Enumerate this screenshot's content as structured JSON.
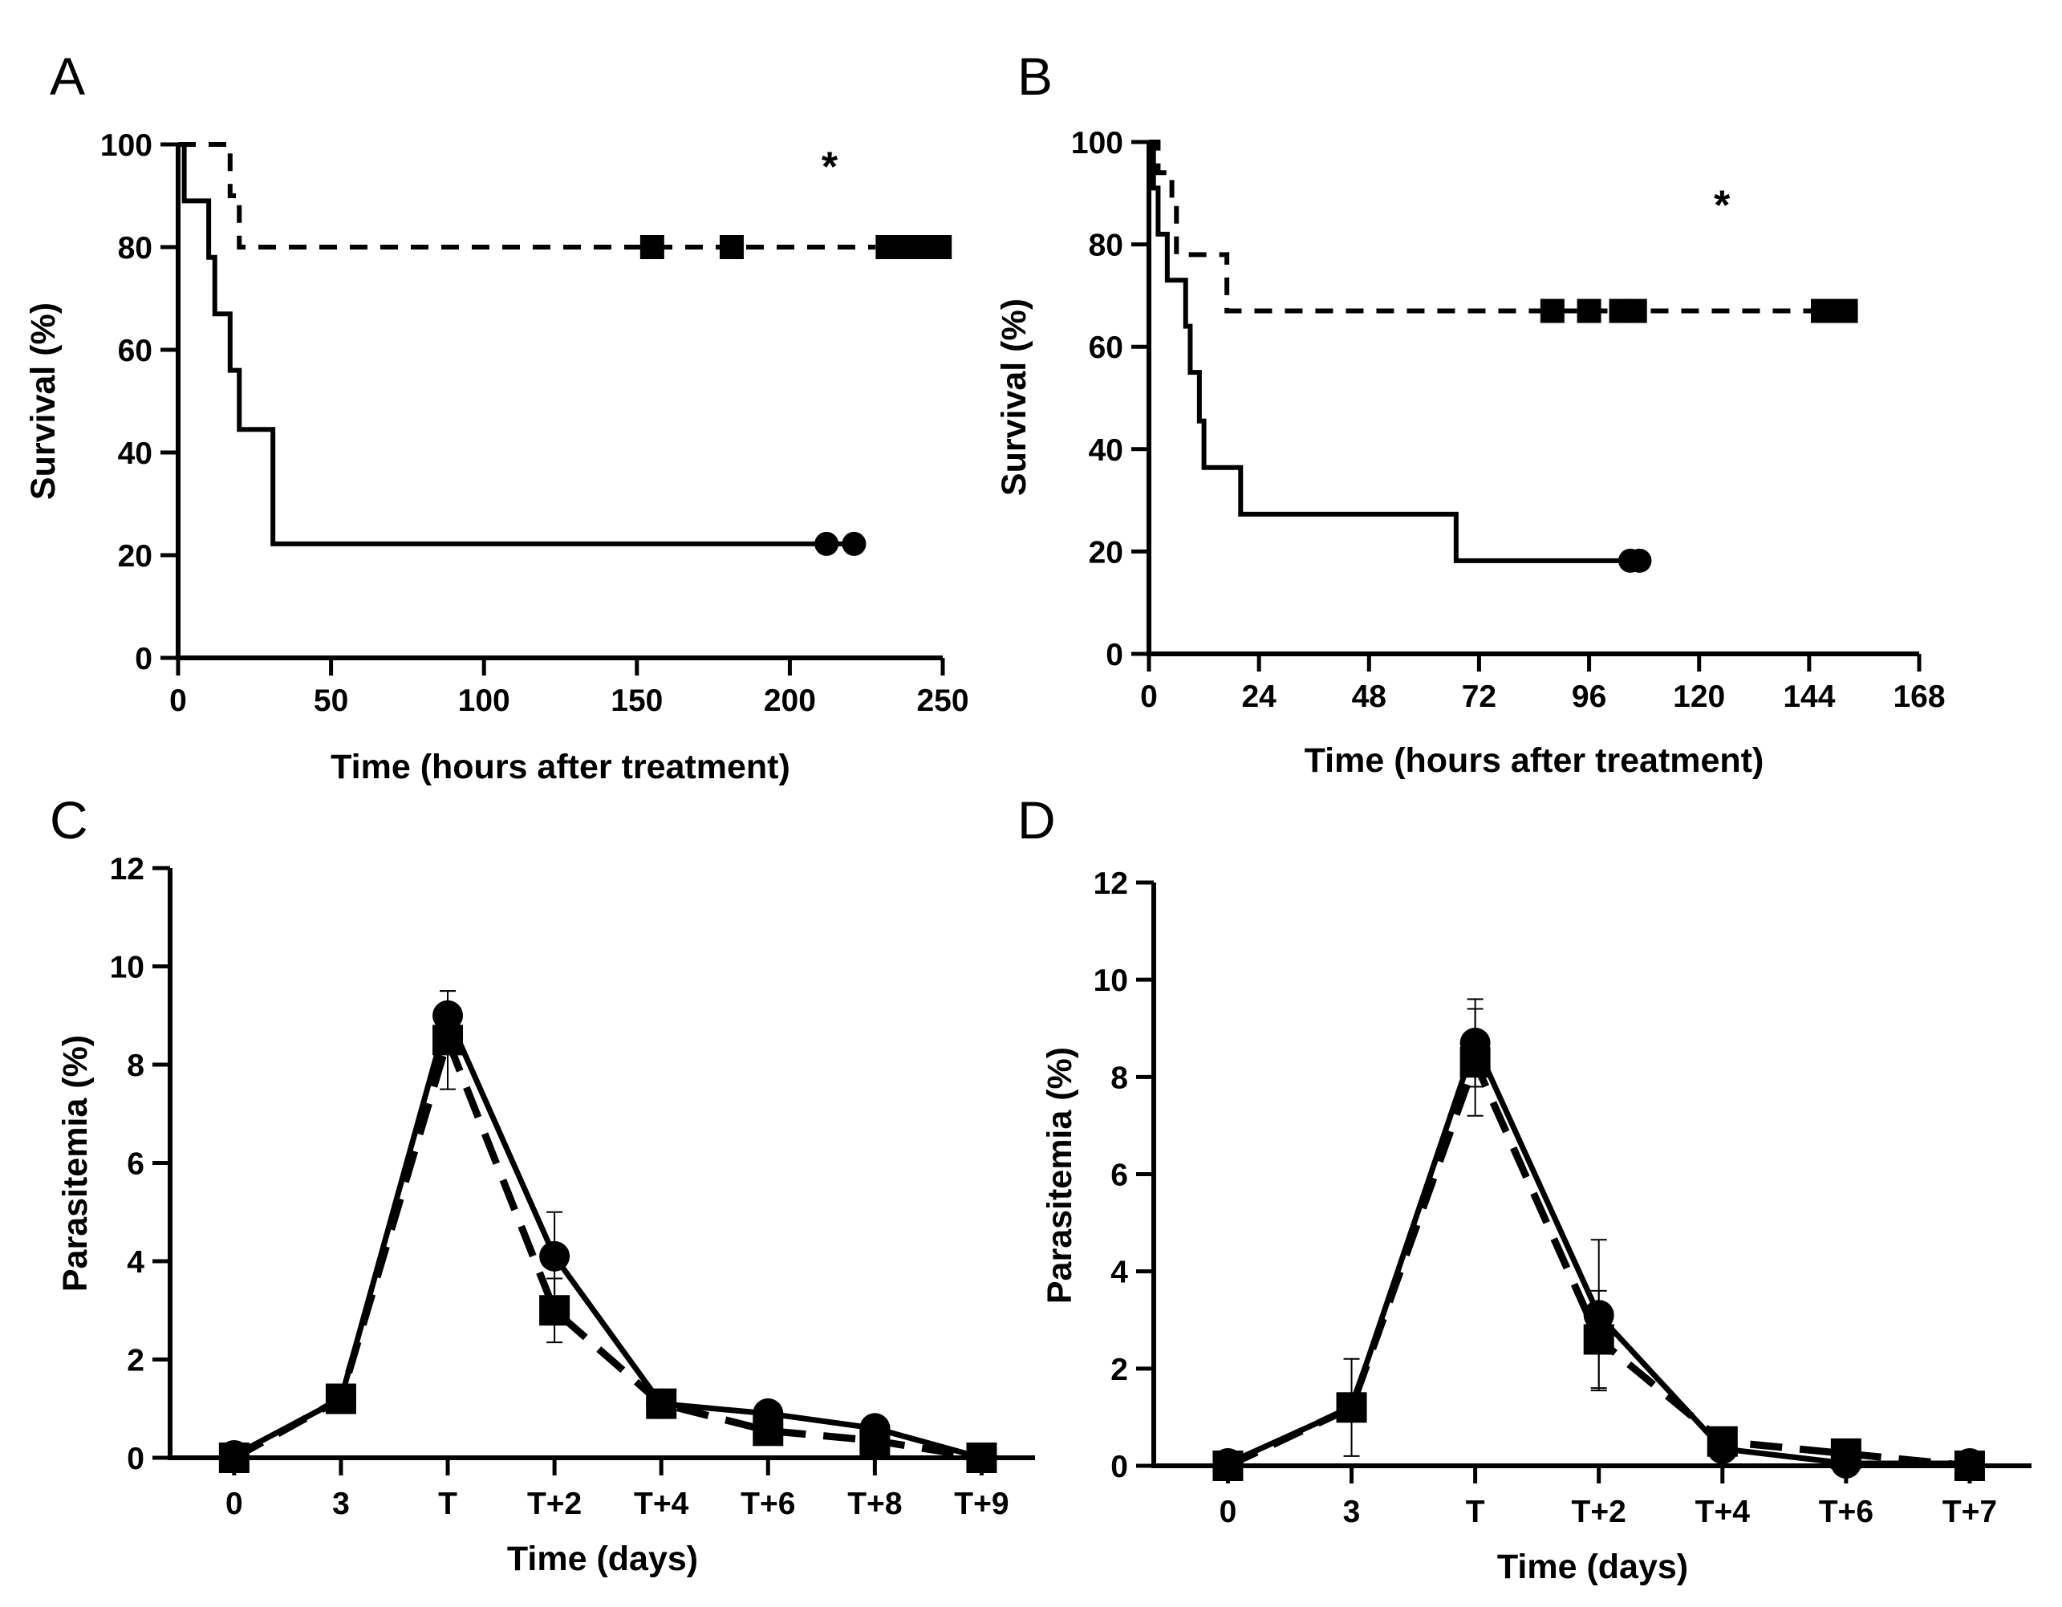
{
  "chart_data": [
    {
      "panel": "A",
      "type": "survival",
      "xlabel": "Time (hours after treatment)",
      "ylabel": "Survival (%)",
      "xlim": [
        0,
        250
      ],
      "ylim": [
        0,
        100
      ],
      "xticks": [
        0,
        50,
        100,
        150,
        200,
        250
      ],
      "yticks": [
        0,
        20,
        40,
        60,
        80,
        100
      ],
      "annotation": "*",
      "annotation_pos": [
        213,
        96
      ],
      "series": [
        {
          "name": "dashed",
          "style": "dashed",
          "marker": "square",
          "steps": [
            [
              0,
              100
            ],
            [
              17,
              100
            ],
            [
              17,
              90
            ],
            [
              20,
              90
            ],
            [
              20,
              80
            ],
            [
              228,
              80
            ]
          ],
          "censored": [
            [
              155,
              80
            ],
            [
              181,
              80
            ],
            [
              232,
              80
            ],
            [
              236,
              80
            ],
            [
              241,
              80
            ],
            [
              245,
              80
            ],
            [
              249,
              80
            ]
          ]
        },
        {
          "name": "solid",
          "style": "solid",
          "marker": "circle",
          "steps": [
            [
              0,
              100
            ],
            [
              2,
              100
            ],
            [
              2,
              89
            ],
            [
              10,
              89
            ],
            [
              10,
              78
            ],
            [
              12,
              78
            ],
            [
              12,
              67
            ],
            [
              17,
              67
            ],
            [
              17,
              56
            ],
            [
              20,
              56
            ],
            [
              20,
              44.5
            ],
            [
              31,
              44.5
            ],
            [
              31,
              22.2
            ],
            [
              220,
              22.2
            ]
          ],
          "censored": [
            [
              212,
              22.2
            ],
            [
              221,
              22.2
            ]
          ]
        }
      ]
    },
    {
      "panel": "B",
      "type": "survival",
      "xlabel": "Time (hours after treatment)",
      "ylabel": "Survival (%)",
      "xlim": [
        0,
        168
      ],
      "ylim": [
        0,
        100
      ],
      "xticks": [
        0,
        24,
        48,
        72,
        96,
        120,
        144,
        168
      ],
      "yticks": [
        0,
        20,
        40,
        60,
        80,
        100
      ],
      "annotation": "*",
      "annotation_pos": [
        125,
        88
      ],
      "series": [
        {
          "name": "dashed",
          "style": "dashed",
          "marker": "square",
          "steps": [
            [
              0,
              100
            ],
            [
              2,
              100
            ],
            [
              2,
              94
            ],
            [
              5,
              94
            ],
            [
              5,
              89
            ],
            [
              6,
              89
            ],
            [
              6,
              78
            ],
            [
              17,
              78
            ],
            [
              17,
              67
            ],
            [
              153,
              67
            ]
          ],
          "censored": [
            [
              88,
              67
            ],
            [
              96,
              67
            ],
            [
              103,
              67
            ],
            [
              106,
              67
            ],
            [
              147,
              67
            ],
            [
              152,
              67
            ]
          ]
        },
        {
          "name": "solid",
          "style": "solid",
          "marker": "circle",
          "steps": [
            [
              0,
              100
            ],
            [
              1,
              100
            ],
            [
              1,
              91
            ],
            [
              2,
              91
            ],
            [
              2,
              82
            ],
            [
              4,
              82
            ],
            [
              4,
              73
            ],
            [
              8,
              73
            ],
            [
              8,
              64
            ],
            [
              9,
              64
            ],
            [
              9,
              55
            ],
            [
              11,
              55
            ],
            [
              11,
              45.5
            ],
            [
              12,
              45.5
            ],
            [
              12,
              36.4
            ],
            [
              20,
              36.4
            ],
            [
              20,
              27.3
            ],
            [
              67,
              27.3
            ],
            [
              67,
              18.2
            ],
            [
              108,
              18.2
            ]
          ],
          "censored": [
            [
              105,
              18.2
            ],
            [
              107,
              18.2
            ]
          ]
        }
      ]
    },
    {
      "panel": "C",
      "type": "line",
      "xlabel": "Time (days)",
      "ylabel": "Parasitemia (%)",
      "categories": [
        "0",
        "3",
        "T",
        "T+2",
        "T+4",
        "T+6",
        "T+8",
        "T+9"
      ],
      "ylim": [
        0,
        12
      ],
      "yticks": [
        0,
        2,
        4,
        6,
        8,
        10,
        12
      ],
      "series": [
        {
          "name": "solid",
          "style": "solid",
          "marker": "circle",
          "values": [
            0.05,
            1.2,
            9.0,
            4.1,
            1.1,
            0.9,
            0.6,
            0.0
          ],
          "errors": [
            0,
            0,
            0.5,
            0.9,
            0,
            0,
            0,
            0
          ]
        },
        {
          "name": "dashed",
          "style": "dashed",
          "marker": "square",
          "values": [
            0.0,
            1.2,
            8.5,
            3.0,
            1.1,
            0.55,
            0.35,
            0.0
          ],
          "errors": [
            0,
            0,
            1.0,
            0.65,
            0,
            0,
            0,
            0
          ]
        }
      ]
    },
    {
      "panel": "D",
      "type": "line",
      "xlabel": "Time (days)",
      "ylabel": "Parasitemia (%)",
      "categories": [
        "0",
        "3",
        "T",
        "T+2",
        "T+4",
        "T+6",
        "T+7"
      ],
      "ylim": [
        0,
        12
      ],
      "yticks": [
        0,
        2,
        4,
        6,
        8,
        10,
        12
      ],
      "series": [
        {
          "name": "solid",
          "style": "solid",
          "marker": "circle",
          "values": [
            0.05,
            1.2,
            8.7,
            3.1,
            0.35,
            0.05,
            0.05
          ],
          "errors": [
            0,
            1.0,
            0.9,
            1.55,
            0,
            0,
            0
          ]
        },
        {
          "name": "dashed",
          "style": "dashed",
          "marker": "square",
          "values": [
            0.0,
            1.2,
            8.3,
            2.6,
            0.5,
            0.25,
            0.0
          ],
          "errors": [
            0,
            0,
            1.1,
            1.0,
            0,
            0,
            0
          ]
        }
      ]
    }
  ]
}
